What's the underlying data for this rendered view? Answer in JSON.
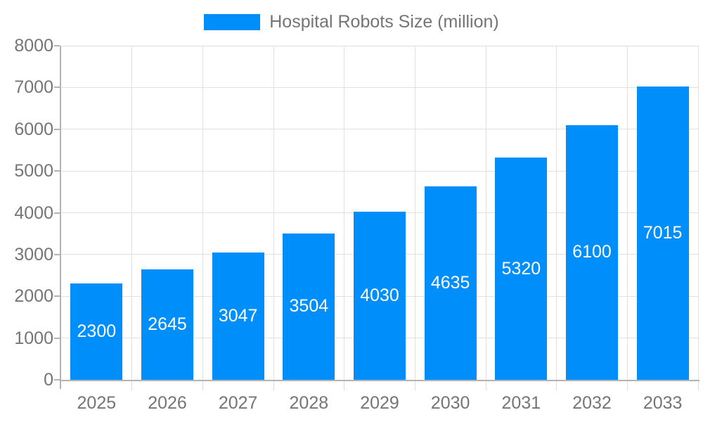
{
  "legend": {
    "label": "Hospital Robots Size (million)"
  },
  "chart_data": {
    "type": "bar",
    "title": "Hospital Robots Size (million)",
    "categories": [
      "2025",
      "2026",
      "2027",
      "2028",
      "2029",
      "2030",
      "2031",
      "2032",
      "2033"
    ],
    "series": [
      {
        "name": "Hospital Robots Size (million)",
        "values": [
          2300,
          2645,
          3047,
          3504,
          4030,
          4635,
          5320,
          6100,
          7015
        ]
      }
    ],
    "xlabel": "",
    "ylabel": "",
    "ylim": [
      0,
      8000
    ],
    "ytick_step": 1000,
    "yticks": [
      0,
      1000,
      2000,
      3000,
      4000,
      5000,
      6000,
      7000,
      8000
    ],
    "grid": true,
    "legend_position": "top",
    "value_label_position": "inside-center",
    "colors": {
      "bar": "#008FFA",
      "value_label": "#FFFFFF",
      "axis_line": "#B3B3B3",
      "grid_line": "#E0E0E0",
      "tick_label": "#757575"
    }
  }
}
